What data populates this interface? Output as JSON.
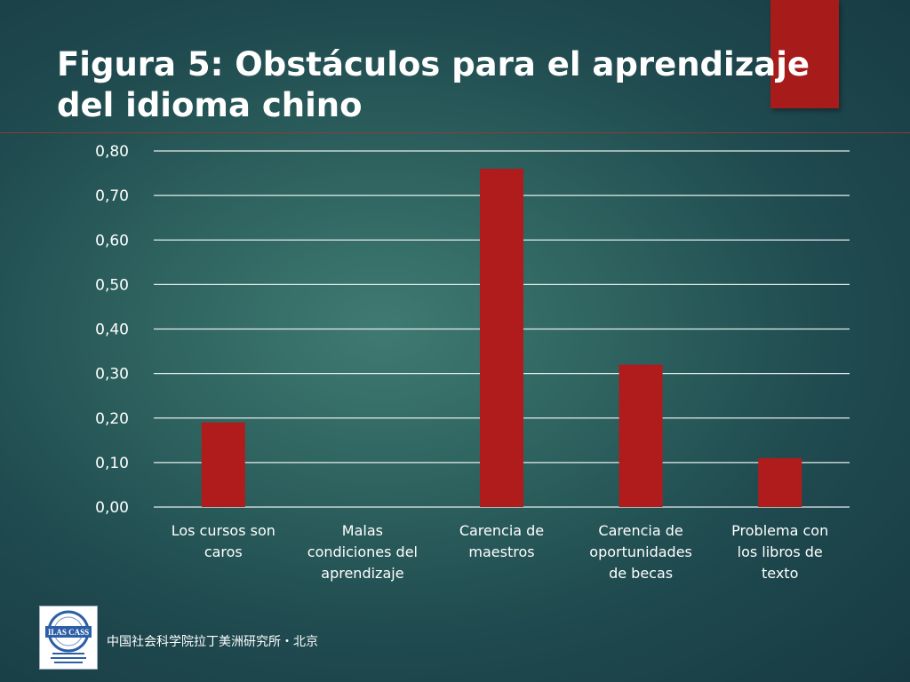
{
  "slide": {
    "title": "Figura 5: Obstáculos para el aprendizaje del idioma chino",
    "footer": "中国社会科学院拉丁美洲研究所・北京",
    "logo_text": "ILAS CASS",
    "accent_color": "#a81b1b"
  },
  "chart_data": {
    "type": "bar",
    "categories": [
      [
        "Los cursos son",
        "caros"
      ],
      [
        "Malas",
        "condiciones del",
        "aprendizaje"
      ],
      [
        "Carencia de",
        "maestros"
      ],
      [
        "Carencia de",
        "oportunidades",
        "de becas"
      ],
      [
        "Problema con",
        "los libros de",
        "texto"
      ]
    ],
    "values": [
      0.19,
      0.0,
      0.76,
      0.32,
      0.11
    ],
    "ylim": [
      0,
      0.8
    ],
    "yticks": [
      "0,00",
      "0,10",
      "0,20",
      "0,30",
      "0,40",
      "0,50",
      "0,60",
      "0,70",
      "0,80"
    ],
    "grid": true,
    "bar_color": "#b01c1c"
  }
}
